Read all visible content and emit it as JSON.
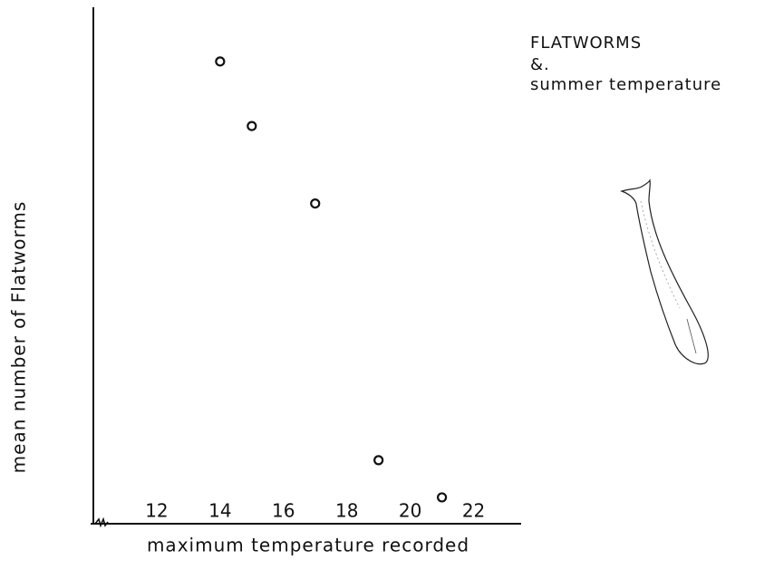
{
  "chart_data": {
    "type": "scatter",
    "title": [
      "FLATWORMS",
      "&.",
      "summer temperature"
    ],
    "x_label": "maximum temperature recorded",
    "y_label": "mean number of Flatworms",
    "x": [
      14,
      15,
      17,
      19,
      21
    ],
    "values": [
      89.5,
      77,
      62,
      12.3,
      5.1
    ],
    "xlim": [
      10,
      23.5
    ],
    "xticks": [
      12,
      14,
      16,
      18,
      20,
      22
    ],
    "ylim": [
      0,
      100
    ],
    "color": "#111111",
    "grid": false
  }
}
